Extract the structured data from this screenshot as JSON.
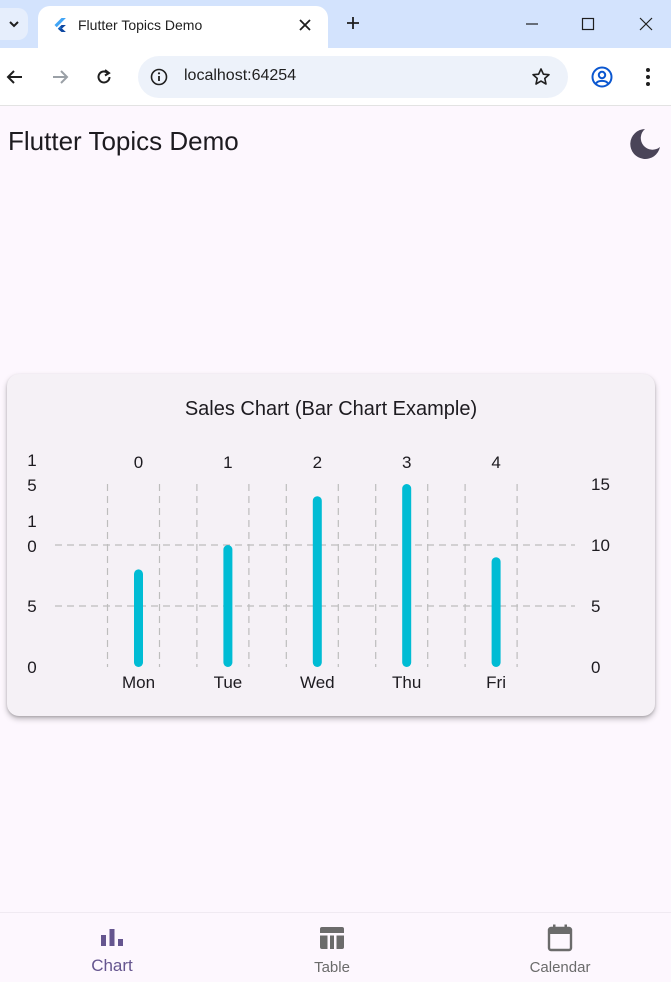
{
  "browser": {
    "tab_title": "Flutter Topics Demo",
    "url": "localhost:64254"
  },
  "app": {
    "title": "Flutter Topics Demo",
    "theme_icon": "dark-mode-moon-icon"
  },
  "chart_data": {
    "type": "bar",
    "title": "Sales Chart (Bar Chart Example)",
    "categories": [
      "Mon",
      "Tue",
      "Wed",
      "Thu",
      "Fri"
    ],
    "top_labels": [
      "0",
      "1",
      "2",
      "3",
      "4"
    ],
    "values": [
      8,
      10,
      14,
      15,
      9
    ],
    "ylim": [
      0,
      15
    ],
    "left_ticks": [
      {
        "value": 15,
        "text": "1\n5"
      },
      {
        "value": 10,
        "text": "1\n0"
      },
      {
        "value": 5,
        "text": "5"
      },
      {
        "value": 0,
        "text": "0"
      }
    ],
    "right_ticks": [
      {
        "value": 15,
        "text": "15"
      },
      {
        "value": 10,
        "text": "10"
      },
      {
        "value": 5,
        "text": "5"
      },
      {
        "value": 0,
        "text": "0"
      }
    ],
    "horizontal_grid": [
      5,
      10
    ],
    "bar_color": "#00bcd4",
    "grid": true
  },
  "bottom_nav": {
    "items": [
      {
        "label": "Chart",
        "icon": "bar-chart-icon",
        "selected": true
      },
      {
        "label": "Table",
        "icon": "table-icon",
        "selected": false
      },
      {
        "label": "Calendar",
        "icon": "calendar-icon",
        "selected": false
      }
    ],
    "selected_color": "#65558f",
    "unselected_color": "#6b6b6b"
  }
}
